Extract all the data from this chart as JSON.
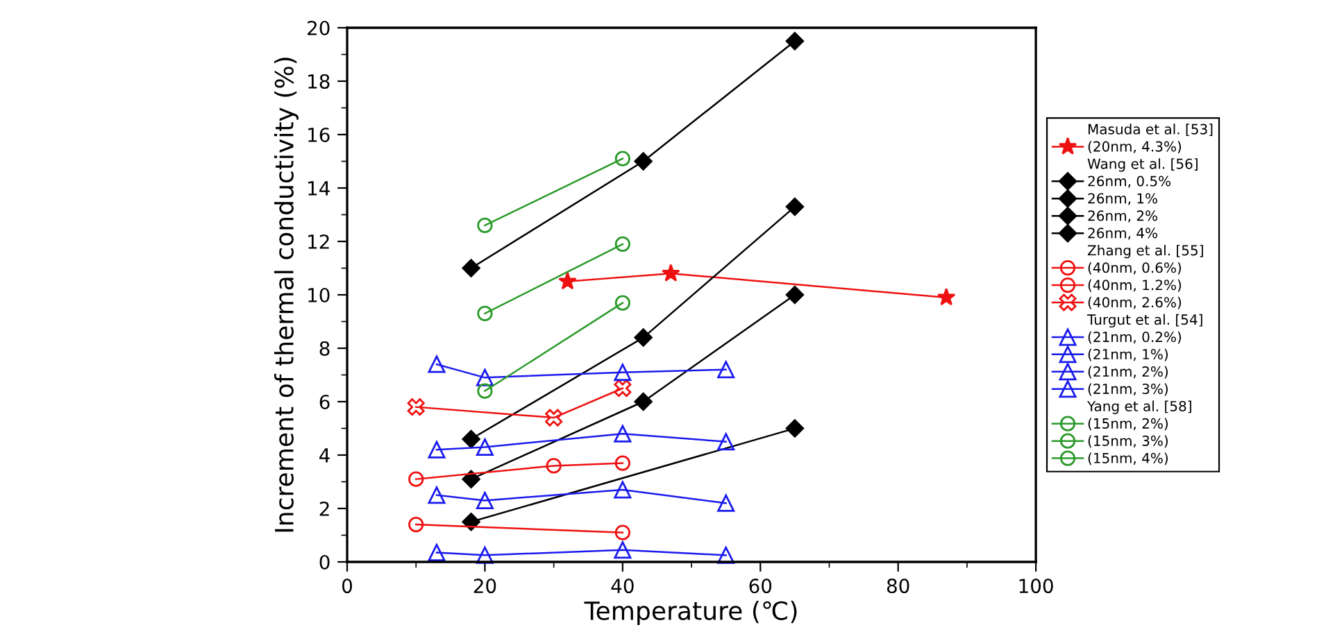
{
  "chart_data": {
    "type": "line",
    "xlabel": "Temperature (℃)",
    "ylabel": "Increment of thermal conductivity (%)",
    "xlim": [
      0,
      100
    ],
    "xticks": [
      0,
      20,
      40,
      60,
      80,
      100
    ],
    "ylim": [
      0,
      20
    ],
    "yticks": [
      0,
      2,
      4,
      6,
      8,
      10,
      12,
      14,
      16,
      18,
      20
    ],
    "grid": false,
    "legend": "right",
    "series": [
      {
        "name": "Masuda et al. [53]",
        "type": "other"
      },
      {
        "name": "(20nm, 4.3%)",
        "color": "#ee1111",
        "marker": "star",
        "x": [
          32,
          47,
          87
        ],
        "values": [
          10.5,
          10.8,
          9.9
        ]
      },
      {
        "name": "Wang et al. [56]",
        "type": "other"
      },
      {
        "name": "26nm, 0.5%",
        "color": "#000000",
        "marker": "diamond",
        "x": [
          18,
          65
        ],
        "values": [
          1.5,
          5.0
        ]
      },
      {
        "name": "26nm, 1%",
        "color": "#000000",
        "marker": "diamond",
        "x": [
          18,
          43,
          65
        ],
        "values": [
          3.1,
          6.0,
          10.0
        ]
      },
      {
        "name": "26nm, 2%",
        "color": "#000000",
        "marker": "diamond",
        "x": [
          18,
          43,
          65
        ],
        "values": [
          4.6,
          8.4,
          13.3
        ]
      },
      {
        "name": "26nm, 4%",
        "color": "#000000",
        "marker": "diamond",
        "x": [
          18,
          43,
          65
        ],
        "values": [
          11.0,
          15.0,
          19.5
        ]
      },
      {
        "name": "Zhang et al. [55]",
        "type": "other"
      },
      {
        "name": "(40nm, 0.6%)",
        "color": "#ee1111",
        "marker": "circle",
        "x": [
          10,
          40
        ],
        "values": [
          1.4,
          1.1
        ]
      },
      {
        "name": "(40nm, 1.2%)",
        "color": "#ee1111",
        "marker": "circle",
        "x": [
          10,
          30,
          40
        ],
        "values": [
          3.1,
          3.6,
          3.7
        ]
      },
      {
        "name": "(40nm, 2.6%)",
        "color": "#ee1111",
        "marker": "cross",
        "x": [
          10,
          30,
          40
        ],
        "values": [
          5.8,
          5.4,
          6.5
        ]
      },
      {
        "name": "Turgut et al. [54]",
        "type": "other"
      },
      {
        "name": "(21nm, 0.2%)",
        "color": "#1a1aee",
        "marker": "triangle",
        "x": [
          13,
          20,
          40,
          55
        ],
        "values": [
          2.5,
          2.3,
          2.7,
          2.2
        ]
      },
      {
        "name": "(21nm, 1%)",
        "color": "#1a1aee",
        "marker": "triangle",
        "x": [
          13,
          20,
          40,
          55
        ],
        "values": [
          4.2,
          4.3,
          4.8,
          4.5
        ]
      },
      {
        "name": "(21nm, 2%)",
        "color": "#1a1aee",
        "marker": "triangle",
        "x": [
          13,
          20,
          40,
          55
        ],
        "values": [
          0.35,
          0.25,
          0.45,
          0.25
        ]
      },
      {
        "name": "(21nm, 3%)",
        "color": "#1a1aee",
        "marker": "triangle",
        "x": [
          13,
          20,
          40,
          55
        ],
        "values": [
          7.4,
          6.9,
          7.1,
          7.2
        ]
      },
      {
        "name": "Yang et al. [58]",
        "type": "other"
      },
      {
        "name": "(15nm, 2%)",
        "color": "#2a9a2a",
        "marker": "circle",
        "x": [
          20,
          40
        ],
        "values": [
          12.6,
          15.1
        ]
      },
      {
        "name": "(15nm, 3%)",
        "color": "#2a9a2a",
        "marker": "circle",
        "x": [
          20,
          40
        ],
        "values": [
          9.3,
          11.9
        ]
      },
      {
        "name": "(15nm, 4%)",
        "color": "#2a9a2a",
        "marker": "circle",
        "x": [
          20,
          40
        ],
        "values": [
          6.4,
          9.7
        ]
      }
    ]
  }
}
